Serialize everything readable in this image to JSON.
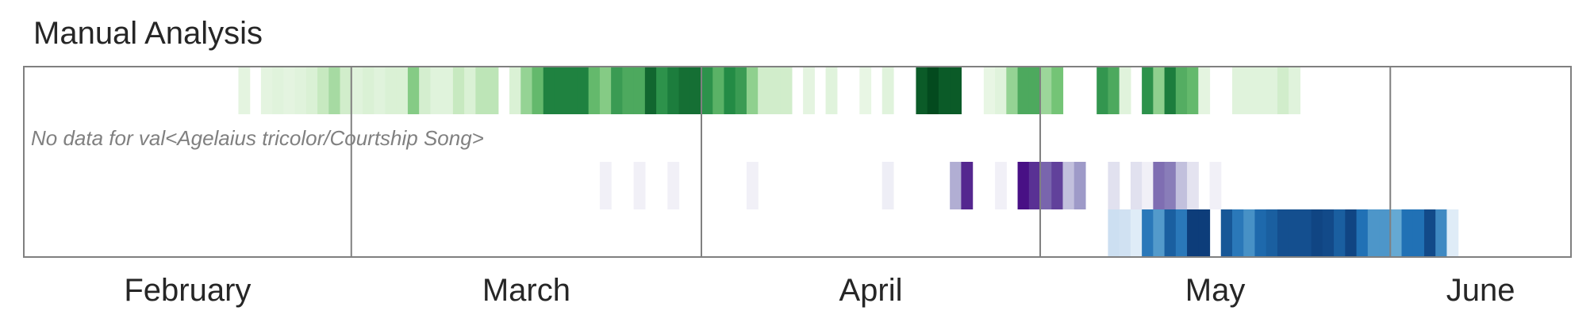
{
  "chart_data": {
    "type": "heatmap",
    "title": "Manual Analysis",
    "x_months": [
      "February",
      "March",
      "April",
      "May",
      "June"
    ],
    "month_start_days": [
      1,
      30,
      61,
      91,
      122
    ],
    "x_range_days": [
      1,
      137
    ],
    "no_data_note": "No data for val<Agelaius tricolor/Courtship Song>",
    "rows": [
      {
        "palette": "green",
        "cells": [
          [
            20,
            0.1
          ],
          [
            22,
            0.1
          ],
          [
            23,
            0.12
          ],
          [
            24,
            0.1
          ],
          [
            25,
            0.12
          ],
          [
            26,
            0.15
          ],
          [
            27,
            0.25
          ],
          [
            28,
            0.35
          ],
          [
            29,
            0.2
          ],
          [
            30,
            0.12
          ],
          [
            31,
            0.15
          ],
          [
            32,
            0.12
          ],
          [
            33,
            0.15
          ],
          [
            34,
            0.15
          ],
          [
            35,
            0.45
          ],
          [
            36,
            0.18
          ],
          [
            37,
            0.12
          ],
          [
            38,
            0.12
          ],
          [
            39,
            0.25
          ],
          [
            40,
            0.15
          ],
          [
            41,
            0.28
          ],
          [
            42,
            0.28
          ],
          [
            44,
            0.15
          ],
          [
            45,
            0.4
          ],
          [
            46,
            0.55
          ],
          [
            47,
            0.78
          ],
          [
            48,
            0.78
          ],
          [
            49,
            0.78
          ],
          [
            50,
            0.78
          ],
          [
            51,
            0.55
          ],
          [
            52,
            0.45
          ],
          [
            53,
            0.68
          ],
          [
            54,
            0.62
          ],
          [
            55,
            0.62
          ],
          [
            56,
            0.88
          ],
          [
            57,
            0.72
          ],
          [
            58,
            0.8
          ],
          [
            59,
            0.85
          ],
          [
            60,
            0.85
          ],
          [
            61,
            0.72
          ],
          [
            62,
            0.58
          ],
          [
            63,
            0.75
          ],
          [
            64,
            0.68
          ],
          [
            65,
            0.42
          ],
          [
            66,
            0.2
          ],
          [
            67,
            0.2
          ],
          [
            68,
            0.2
          ],
          [
            70,
            0.1
          ],
          [
            72,
            0.12
          ],
          [
            75,
            0.08
          ],
          [
            77,
            0.12
          ],
          [
            80,
            0.92
          ],
          [
            81,
            0.98
          ],
          [
            82,
            0.92
          ],
          [
            83,
            0.92
          ],
          [
            86,
            0.08
          ],
          [
            87,
            0.12
          ],
          [
            88,
            0.4
          ],
          [
            89,
            0.62
          ],
          [
            90,
            0.62
          ],
          [
            91,
            0.38
          ],
          [
            92,
            0.5
          ],
          [
            96,
            0.7
          ],
          [
            97,
            0.62
          ],
          [
            98,
            0.12
          ],
          [
            100,
            0.72
          ],
          [
            101,
            0.42
          ],
          [
            102,
            0.8
          ],
          [
            103,
            0.6
          ],
          [
            104,
            0.55
          ],
          [
            105,
            0.1
          ],
          [
            108,
            0.12
          ],
          [
            109,
            0.12
          ],
          [
            110,
            0.12
          ],
          [
            111,
            0.12
          ],
          [
            112,
            0.2
          ],
          [
            113,
            0.12
          ]
        ]
      },
      {
        "palette": "none",
        "cells": []
      },
      {
        "palette": "purple",
        "cells": [
          [
            52,
            0.08
          ],
          [
            55,
            0.08
          ],
          [
            58,
            0.08
          ],
          [
            65,
            0.08
          ],
          [
            77,
            0.1
          ],
          [
            83,
            0.42
          ],
          [
            84,
            0.88
          ],
          [
            87,
            0.08
          ],
          [
            89,
            0.95
          ],
          [
            90,
            0.85
          ],
          [
            91,
            0.68
          ],
          [
            92,
            0.8
          ],
          [
            93,
            0.35
          ],
          [
            94,
            0.5
          ],
          [
            97,
            0.2
          ],
          [
            99,
            0.2
          ],
          [
            100,
            0.08
          ],
          [
            101,
            0.65
          ],
          [
            102,
            0.6
          ],
          [
            103,
            0.35
          ],
          [
            104,
            0.18
          ],
          [
            106,
            0.08
          ]
        ]
      },
      {
        "palette": "blue",
        "cells": [
          [
            97,
            0.22
          ],
          [
            98,
            0.2
          ],
          [
            99,
            0.12
          ],
          [
            100,
            0.72
          ],
          [
            101,
            0.58
          ],
          [
            102,
            0.82
          ],
          [
            103,
            0.72
          ],
          [
            104,
            0.95
          ],
          [
            105,
            0.95
          ],
          [
            107,
            0.85
          ],
          [
            108,
            0.72
          ],
          [
            109,
            0.62
          ],
          [
            110,
            0.78
          ],
          [
            111,
            0.82
          ],
          [
            112,
            0.88
          ],
          [
            113,
            0.88
          ],
          [
            114,
            0.88
          ],
          [
            115,
            0.92
          ],
          [
            116,
            0.9
          ],
          [
            117,
            0.82
          ],
          [
            118,
            0.92
          ],
          [
            119,
            0.75
          ],
          [
            120,
            0.6
          ],
          [
            121,
            0.6
          ],
          [
            122,
            0.52
          ],
          [
            123,
            0.75
          ],
          [
            124,
            0.75
          ],
          [
            125,
            0.9
          ],
          [
            126,
            0.65
          ],
          [
            127,
            0.12
          ]
        ]
      }
    ]
  }
}
